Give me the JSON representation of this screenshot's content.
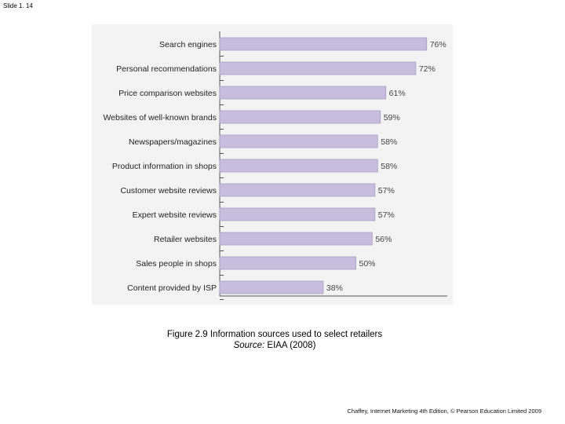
{
  "slide": {
    "number": "Slide 1. 14"
  },
  "caption": {
    "line1": "Figure 2.9  Information sources used to select retailers",
    "source_label": "Source:",
    "source_text": " EIAA (2008)"
  },
  "footer": {
    "text": "Chaffey, Internet Marketing 4th Edition, © Pearson Education Limited 2009"
  },
  "colors": {
    "bar_fill": "#c6bedc",
    "bar_stroke": "#a79ec6",
    "panel": "#f3f3f3",
    "axis": "#555555"
  },
  "chart_data": {
    "type": "bar",
    "orientation": "horizontal",
    "categories": [
      "Search engines",
      "Personal recommendations",
      "Price comparison websites",
      "Websites of well-known brands",
      "Newspapers/magazines",
      "Product information in shops",
      "Customer website reviews",
      "Expert website reviews",
      "Retailer websites",
      "Sales people in shops",
      "Content provided by ISP"
    ],
    "values": [
      76,
      72,
      61,
      59,
      58,
      58,
      57,
      57,
      56,
      50,
      38
    ],
    "value_labels": [
      "76%",
      "72%",
      "61%",
      "59%",
      "58%",
      "58%",
      "57%",
      "57%",
      "56%",
      "50%",
      "38%"
    ],
    "title": "",
    "xlabel": "",
    "ylabel": "",
    "xlim": [
      0,
      100
    ],
    "grid": false,
    "legend": "none"
  }
}
